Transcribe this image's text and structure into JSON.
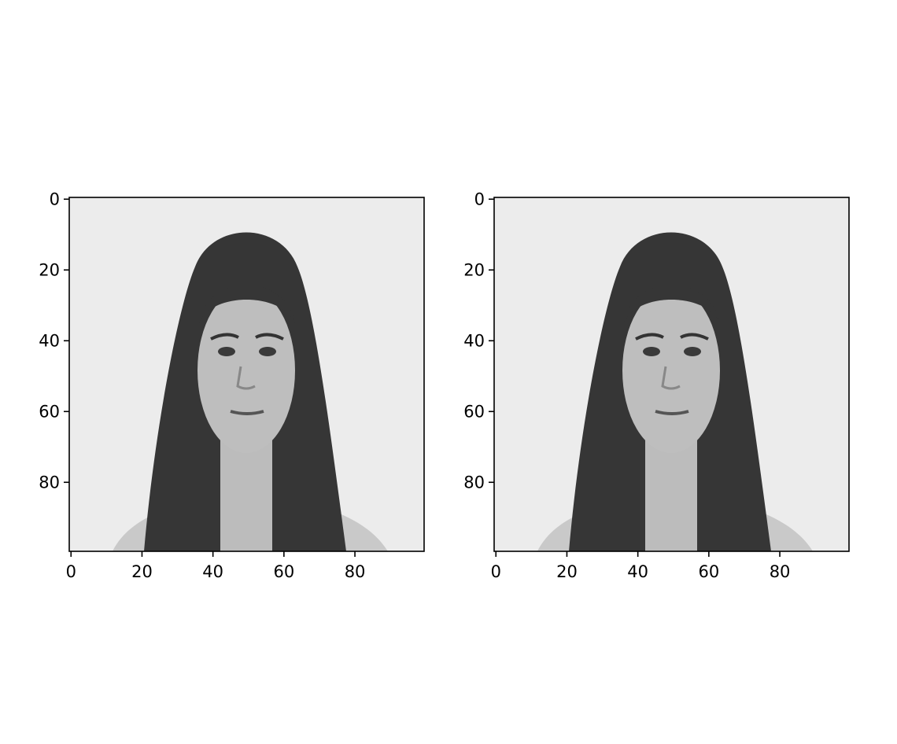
{
  "chart_data": [
    {
      "type": "image",
      "xlim": [
        -0.5,
        99.5
      ],
      "ylim": [
        99.5,
        -0.5
      ],
      "xticks": [
        0,
        20,
        40,
        60,
        80
      ],
      "yticks": [
        0,
        20,
        40,
        60,
        80
      ]
    },
    {
      "type": "image",
      "xlim": [
        -0.5,
        99.5
      ],
      "ylim": [
        99.5,
        -0.5
      ],
      "xticks": [
        0,
        20,
        40,
        60,
        80
      ],
      "yticks": [
        0,
        20,
        40,
        60,
        80
      ]
    }
  ]
}
